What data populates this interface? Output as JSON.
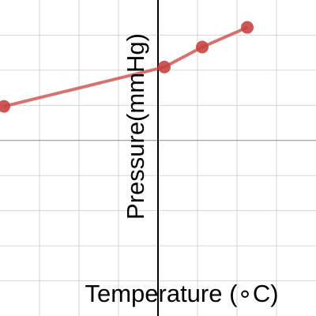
{
  "chart_data": {
    "type": "line",
    "x_label": "Temperature (∘C)",
    "y_label": "Pressure(mmHg)",
    "x": [
      -3.9,
      0.16,
      1.12,
      2.26
    ],
    "series": [
      {
        "color": "#c74440",
        "values": [
          0.97,
          2.09,
          2.66,
          3.22
        ]
      }
    ],
    "xlim": [
      -4,
      4
    ],
    "ylim": [
      -5,
      4
    ],
    "xticks": [
      -3,
      -2,
      -1,
      0,
      1,
      2,
      3
    ],
    "yticks": [
      -4,
      -3,
      -2,
      -1,
      0,
      1,
      2,
      3
    ],
    "grid": true
  }
}
